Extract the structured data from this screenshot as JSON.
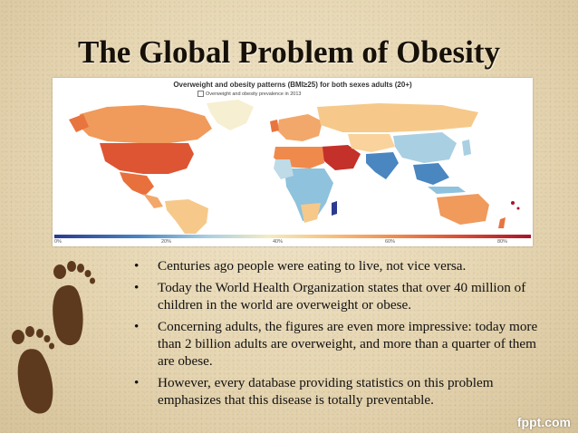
{
  "slide": {
    "title": "The Global Problem of Obesity",
    "brand": "fppt.com"
  },
  "map": {
    "heading": "Overweight and obesity patterns (BMI≥25) for both sexes adults (20+)",
    "legend_label": "Overweight and obesity prevalence in 2013",
    "scale_ticks": [
      "0%",
      "20%",
      "40%",
      "60%",
      "80%"
    ],
    "colors": {
      "low": "#2b3a8f",
      "mid": "#f3ecc2",
      "high": "#a8142a"
    }
  },
  "bullets": [
    "Centuries ago people were eating to live, not vice versa.",
    "Today the World Health Organization states that over 40 million of children in the world are overweight or obese.",
    "Concerning adults, the figures are even more impressive: today more than 2 billion adults are overweight, and more than a quarter of them are obese.",
    "However, every database providing statistics on this problem emphasizes that this disease is totally preventable."
  ],
  "bullet_symbol": "•"
}
